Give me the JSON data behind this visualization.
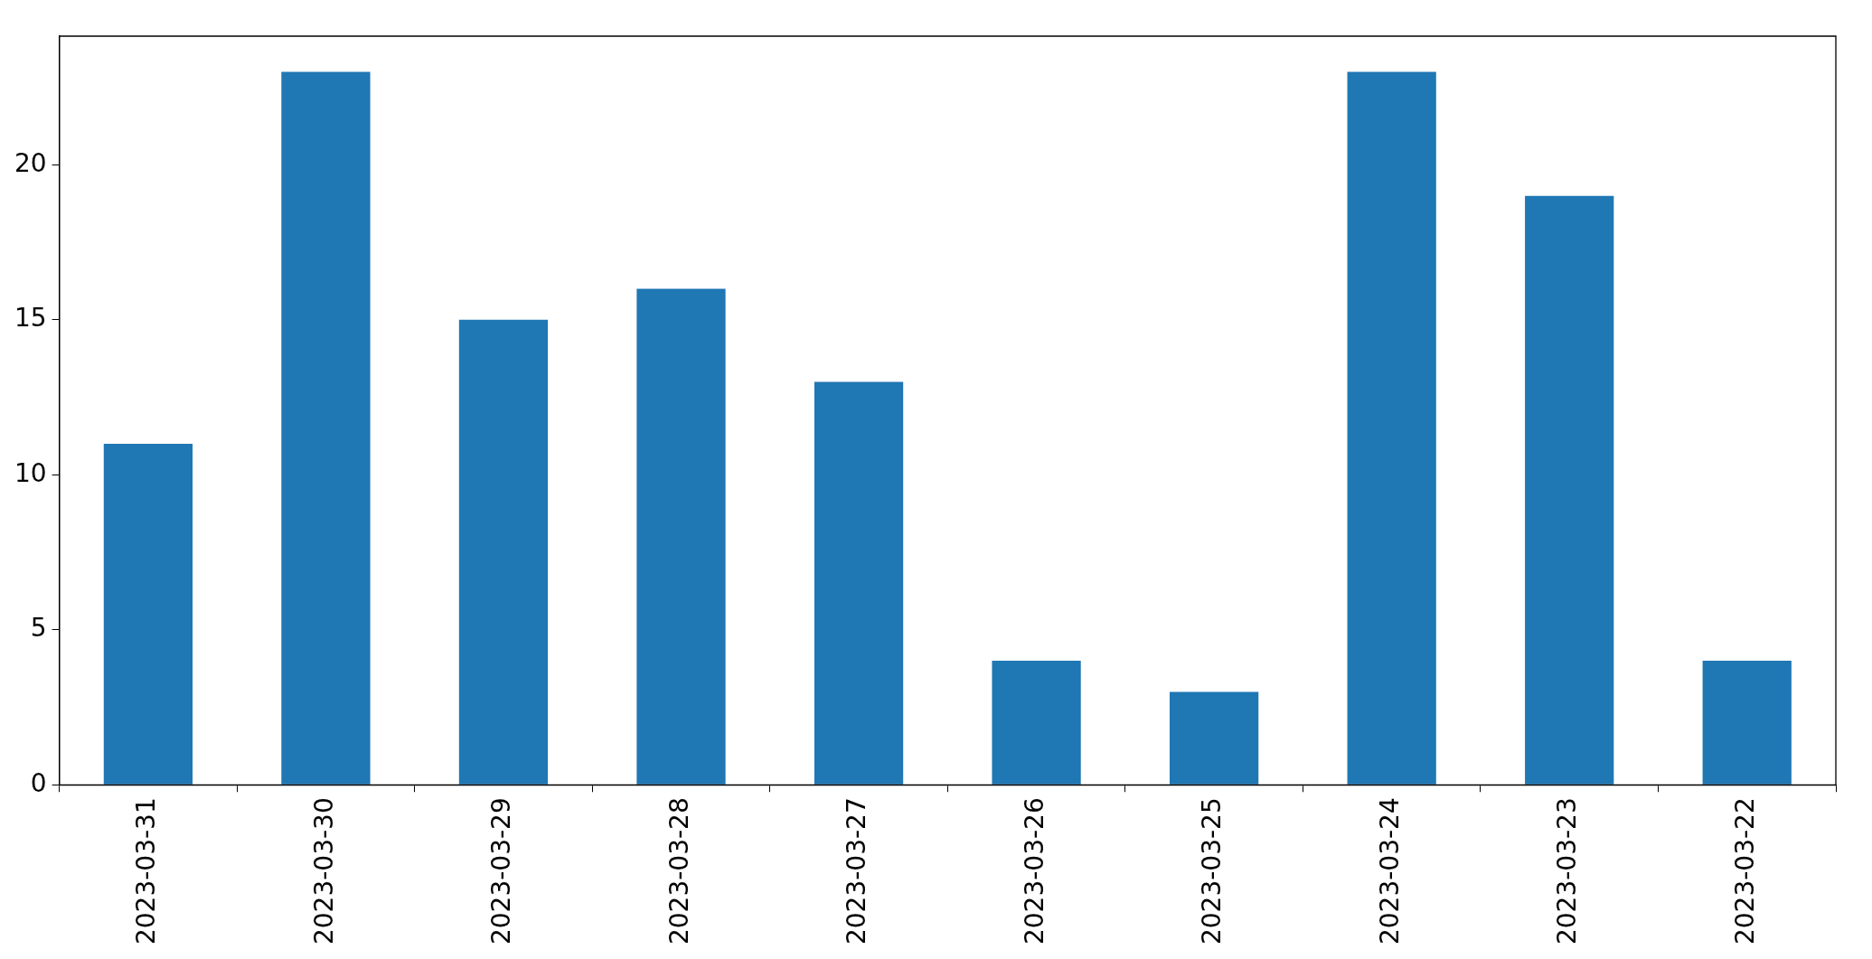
{
  "chart_data": {
    "type": "bar",
    "categories": [
      "2023-03-31",
      "2023-03-30",
      "2023-03-29",
      "2023-03-28",
      "2023-03-27",
      "2023-03-26",
      "2023-03-25",
      "2023-03-24",
      "2023-03-23",
      "2023-03-22"
    ],
    "values": [
      11,
      23,
      15,
      16,
      13,
      4,
      3,
      23,
      19,
      4
    ],
    "color": "#1f77b4",
    "ylim": [
      0,
      24.15
    ],
    "yticks": [
      0,
      5,
      10,
      15,
      20
    ]
  }
}
